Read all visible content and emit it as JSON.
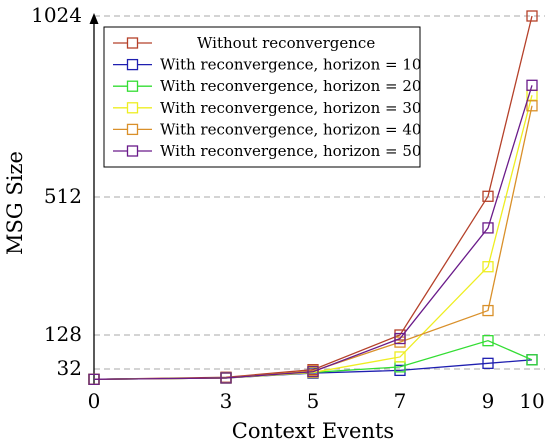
{
  "chart_data": {
    "type": "line",
    "title": "",
    "xlabel": "Context Events",
    "ylabel": "MSG Size",
    "x_ticks": [
      0,
      3,
      5,
      7,
      9,
      10
    ],
    "y_ticks": [
      32,
      128,
      512,
      1024
    ],
    "xlim": [
      0,
      10
    ],
    "ylim": [
      0,
      1024
    ],
    "x_scale": "context-event positions 0,3,5,7,9,10",
    "grid": "horizontal dashed at y ticks",
    "legend": "top-left, inside plot",
    "series": [
      {
        "name": "Without reconvergence",
        "color": "#b5412a",
        "x": [
          0,
          3,
          5,
          7,
          9,
          10
        ],
        "y": [
          2,
          8,
          30,
          128,
          514,
          1024
        ]
      },
      {
        "name": "With reconvergence, horizon = 10",
        "color": "#1f1fb0",
        "x": [
          0,
          3,
          5,
          7,
          9,
          10
        ],
        "y": [
          2,
          6,
          20,
          28,
          48,
          58
        ]
      },
      {
        "name": "With reconvergence, horizon = 20",
        "color": "#33dd33",
        "x": [
          0,
          3,
          5,
          7,
          9,
          10
        ],
        "y": [
          2,
          6,
          22,
          38,
          112,
          58
        ]
      },
      {
        "name": "With reconvergence, horizon = 30",
        "color": "#eeee22",
        "x": [
          0,
          3,
          5,
          7,
          9,
          10
        ],
        "y": [
          2,
          6,
          22,
          66,
          318,
          800
        ]
      },
      {
        "name": "With reconvergence, horizon = 40",
        "color": "#d9902a",
        "x": [
          0,
          3,
          5,
          7,
          9,
          10
        ],
        "y": [
          2,
          6,
          26,
          108,
          196,
          770
        ]
      },
      {
        "name": "With reconvergence, horizon = 50",
        "color": "#6a1b8a",
        "x": [
          0,
          3,
          5,
          7,
          9,
          10
        ],
        "y": [
          2,
          6,
          24,
          118,
          426,
          828
        ]
      }
    ]
  }
}
